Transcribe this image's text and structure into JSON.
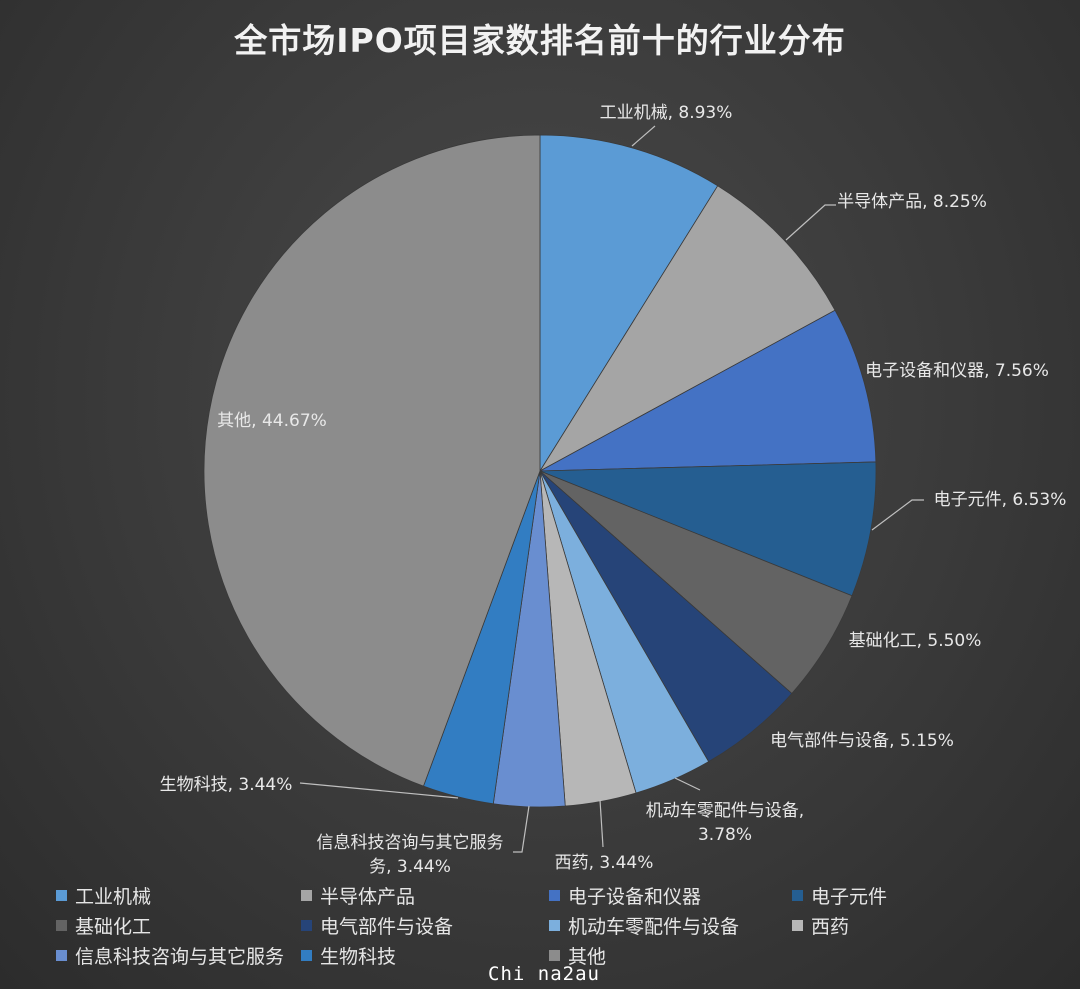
{
  "chart_data": {
    "type": "pie",
    "title": "全市场IPO项目家数排名前十的行业分布",
    "legend_position": "bottom",
    "slices": [
      {
        "name": "工业机械",
        "value": 8.93,
        "label": "工业机械, 8.93%",
        "color": "#5b9bd5"
      },
      {
        "name": "半导体产品",
        "value": 8.25,
        "label": "半导体产品, 8.25%",
        "color": "#a5a5a5"
      },
      {
        "name": "电子设备和仪器",
        "value": 7.56,
        "label": "电子设备和仪器, 7.56%",
        "color": "#4472c4"
      },
      {
        "name": "电子元件",
        "value": 6.53,
        "label": "电子元件, 6.53%",
        "color": "#255e91"
      },
      {
        "name": "基础化工",
        "value": 5.5,
        "label": "基础化工, 5.50%",
        "color": "#636363"
      },
      {
        "name": "电气部件与设备",
        "value": 5.15,
        "label": "电气部件与设备, 5.15%",
        "color": "#264478"
      },
      {
        "name": "机动车零配件与设备",
        "value": 3.78,
        "label_lines": [
          "机动车零配件与设备,",
          "3.78%"
        ],
        "color": "#7cafdd"
      },
      {
        "name": "西药",
        "value": 3.44,
        "label": "西药, 3.44%",
        "color": "#b7b7b7"
      },
      {
        "name": "信息科技咨询与其它服务",
        "value": 3.44,
        "label_lines": [
          "信息科技咨询与其它服务",
          "务, 3.44%"
        ],
        "color": "#698ed0"
      },
      {
        "name": "生物科技",
        "value": 3.44,
        "label": "生物科技, 3.44%",
        "color": "#327dc2"
      },
      {
        "name": "其他",
        "value": 44.67,
        "label": "其他, 44.67%",
        "color": "#8c8c8c"
      }
    ]
  },
  "watermark": "Chi na2au"
}
